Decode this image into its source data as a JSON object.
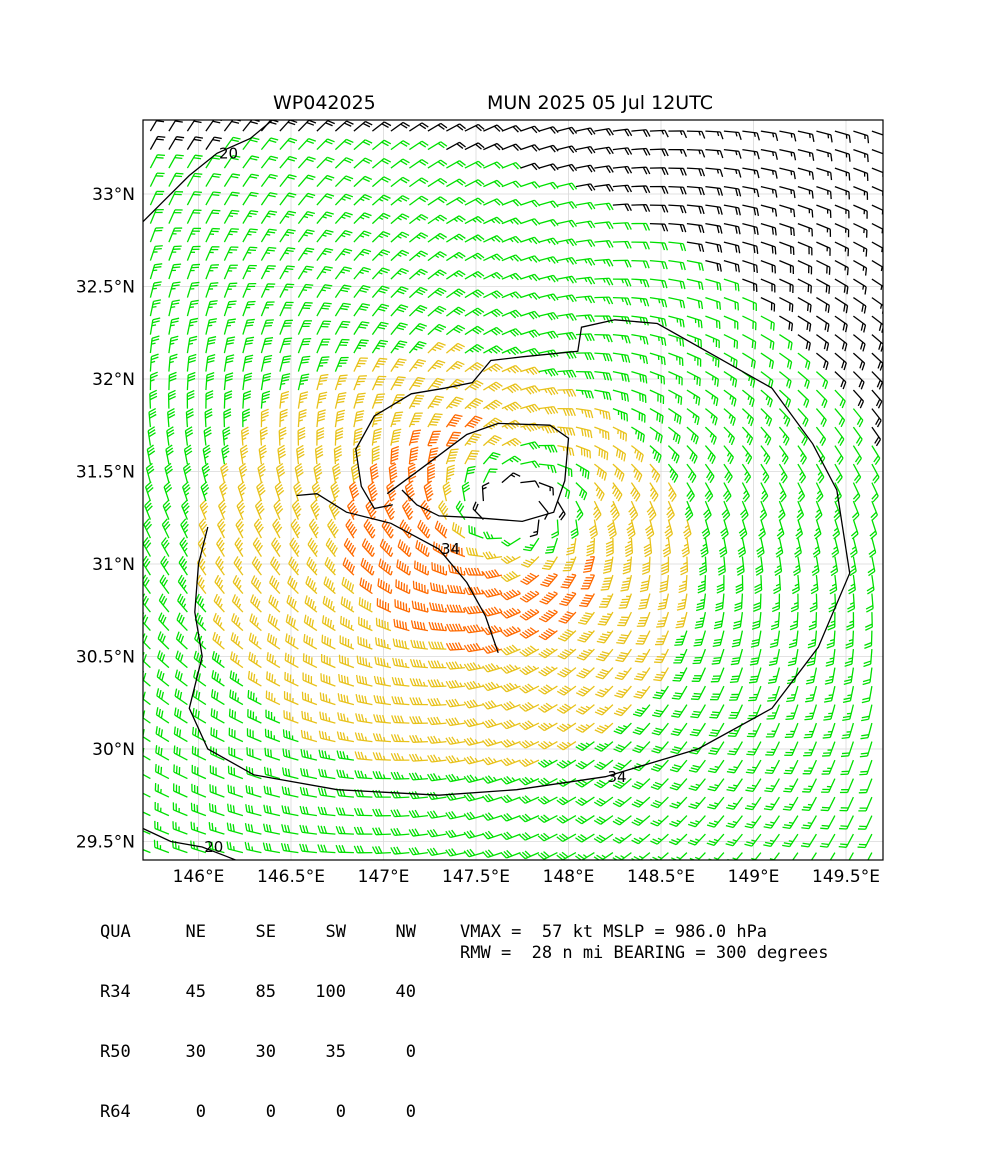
{
  "title": {
    "storm_id": "WP042025",
    "storm_info": "MUN 2025 05 Jul 12UTC"
  },
  "chart_data": {
    "type": "map-wind-barbs",
    "xlim": [
      145.7,
      149.7
    ],
    "ylim": [
      29.4,
      33.4
    ],
    "x_ticks": [
      {
        "value": 146.0,
        "label": "146°E"
      },
      {
        "value": 146.5,
        "label": "146.5°E"
      },
      {
        "value": 147.0,
        "label": "147°E"
      },
      {
        "value": 147.5,
        "label": "147.5°E"
      },
      {
        "value": 148.0,
        "label": "148°E"
      },
      {
        "value": 148.5,
        "label": "148.5°E"
      },
      {
        "value": 149.0,
        "label": "149°E"
      },
      {
        "value": 149.5,
        "label": "149.5°E"
      }
    ],
    "y_ticks": [
      {
        "value": 29.5,
        "label": "29.5°N"
      },
      {
        "value": 30.0,
        "label": "30°N"
      },
      {
        "value": 30.5,
        "label": "30.5°N"
      },
      {
        "value": 31.0,
        "label": "31°N"
      },
      {
        "value": 31.5,
        "label": "31.5°N"
      },
      {
        "value": 32.0,
        "label": "32°N"
      },
      {
        "value": 32.5,
        "label": "32.5°N"
      },
      {
        "value": 33.0,
        "label": "33°N"
      }
    ],
    "grid": true,
    "center": {
      "lon": 147.7,
      "lat": 31.3
    },
    "rmw_deg": 0.47,
    "vmax_kt": 57,
    "wind_colors": [
      {
        "min_kt": 0,
        "color": "#000000"
      },
      {
        "min_kt": 20,
        "color": "#00e000"
      },
      {
        "min_kt": 34,
        "color": "#e8c21a"
      },
      {
        "min_kt": 50,
        "color": "#ff6a00"
      }
    ],
    "contours": [
      {
        "label": "34",
        "points": [
          [
            146.53,
            31.37
          ],
          [
            146.64,
            31.38
          ],
          [
            146.8,
            31.28
          ],
          [
            147.04,
            31.22
          ],
          [
            147.3,
            31.08
          ],
          [
            147.45,
            30.9
          ],
          [
            147.55,
            30.72
          ],
          [
            147.62,
            30.52
          ]
        ]
      },
      {
        "label": "34",
        "points": [
          [
            146.05,
            31.2
          ],
          [
            146.0,
            31.0
          ],
          [
            145.98,
            30.74
          ],
          [
            146.02,
            30.5
          ],
          [
            145.95,
            30.22
          ],
          [
            146.05,
            30.0
          ],
          [
            146.3,
            29.86
          ],
          [
            146.75,
            29.78
          ],
          [
            147.3,
            29.75
          ],
          [
            147.72,
            29.78
          ],
          [
            148.2,
            29.85
          ],
          [
            148.7,
            30.0
          ],
          [
            149.1,
            30.22
          ],
          [
            149.35,
            30.55
          ],
          [
            149.52,
            30.95
          ],
          [
            149.45,
            31.4
          ],
          [
            149.32,
            31.65
          ],
          [
            149.1,
            31.95
          ],
          [
            148.8,
            32.12
          ],
          [
            148.48,
            32.3
          ],
          [
            148.25,
            32.32
          ],
          [
            148.07,
            32.28
          ],
          [
            148.05,
            32.15
          ],
          [
            147.75,
            32.12
          ],
          [
            147.58,
            32.1
          ],
          [
            147.48,
            31.98
          ],
          [
            147.33,
            31.95
          ],
          [
            147.15,
            31.92
          ],
          [
            146.95,
            31.8
          ],
          [
            146.85,
            31.62
          ],
          [
            146.88,
            31.42
          ],
          [
            146.95,
            31.3
          ],
          [
            147.05,
            31.32
          ]
        ]
      },
      {
        "label": "",
        "points": [
          [
            147.02,
            31.38
          ],
          [
            147.25,
            31.55
          ],
          [
            147.45,
            31.7
          ],
          [
            147.62,
            31.76
          ],
          [
            147.9,
            31.75
          ],
          [
            148.0,
            31.68
          ],
          [
            147.98,
            31.45
          ],
          [
            147.92,
            31.28
          ],
          [
            147.75,
            31.23
          ],
          [
            147.5,
            31.25
          ],
          [
            147.3,
            31.26
          ],
          [
            147.18,
            31.32
          ],
          [
            147.1,
            31.4
          ]
        ]
      },
      {
        "label": "20",
        "points": [
          [
            145.7,
            32.85
          ],
          [
            145.8,
            32.95
          ],
          [
            145.95,
            33.1
          ],
          [
            146.1,
            33.22
          ],
          [
            146.28,
            33.3
          ],
          [
            146.4,
            33.4
          ]
        ]
      },
      {
        "label": "20",
        "points": [
          [
            145.7,
            29.57
          ],
          [
            145.85,
            29.5
          ],
          [
            146.02,
            29.47
          ],
          [
            146.15,
            29.42
          ],
          [
            146.2,
            29.4
          ]
        ]
      }
    ]
  },
  "table": {
    "headers": [
      "QUA",
      "NE",
      "SE",
      "SW",
      "NW"
    ],
    "rows": [
      [
        "R34",
        "45",
        "85",
        "100",
        "40"
      ],
      [
        "R50",
        "30",
        "30",
        "35",
        "0"
      ],
      [
        "R64",
        "0",
        "0",
        "0",
        "0"
      ]
    ]
  },
  "stats": {
    "line1": "VMAX =  57 kt MSLP = 986.0 hPa",
    "line2": "RMW =  28 n mi BEARING = 300 degrees"
  }
}
